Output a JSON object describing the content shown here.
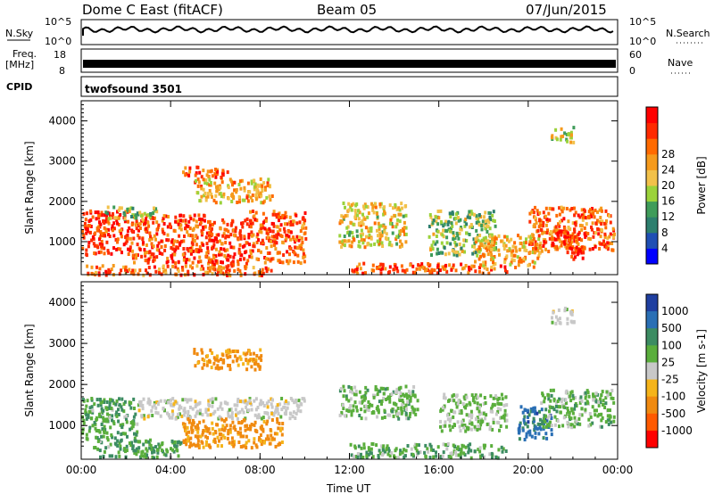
{
  "header": {
    "title": "Dome C East (fitACF)",
    "beam": "Beam 05",
    "date": "07/Jun/2015"
  },
  "strips": {
    "nsky": {
      "label": "N.Sky",
      "top": "10^5",
      "bottom": "10^0",
      "right_label": "N.Search",
      "right_top": "10^5",
      "right_bottom": "10^0"
    },
    "freq": {
      "label_top": "Freq.",
      "label_unit": "[MHz]",
      "top": "18",
      "bottom": "8",
      "right_label": "Nave",
      "right_top": "60",
      "right_bottom": "0"
    },
    "cpid": {
      "label": "CPID",
      "value": "twofsound 3501"
    }
  },
  "chart_data": [
    {
      "type": "heatmap",
      "name": "power-panel",
      "ylabel": "Slant Range [km]",
      "xlabel": "Time UT",
      "x_ticks": [
        "00:00",
        "04:00",
        "08:00",
        "12:00",
        "16:00",
        "20:00",
        "00:00"
      ],
      "x_range_hours": [
        0,
        24
      ],
      "ylim": [
        180,
        4500
      ],
      "y_ticks": [
        1000,
        2000,
        3000,
        4000
      ],
      "colorbar": {
        "label": "Power [dB]",
        "ticks": [
          "4",
          "8",
          "12",
          "16",
          "20",
          "24",
          "28"
        ],
        "colors": [
          "#0000ff",
          "#1f4fb4",
          "#2d7f6e",
          "#3f9c5a",
          "#9bd23a",
          "#f2c14a",
          "#f59a1c",
          "#ff6a00",
          "#ff2a00",
          "#ff0000"
        ]
      },
      "regions": [
        {
          "t0": 0.0,
          "t1": 2.2,
          "r0": 700,
          "r1": 1800,
          "level": 28
        },
        {
          "t0": 2.2,
          "t1": 5.5,
          "r0": 500,
          "r1": 1700,
          "level": 26
        },
        {
          "t0": 5.5,
          "t1": 7.5,
          "r0": 450,
          "r1": 1600,
          "level": 27
        },
        {
          "t0": 7.5,
          "t1": 10.0,
          "r0": 500,
          "r1": 1800,
          "level": 25
        },
        {
          "t0": 1.0,
          "t1": 3.5,
          "r0": 1600,
          "r1": 1900,
          "level": 14
        },
        {
          "t0": 4.5,
          "t1": 6.5,
          "r0": 2600,
          "r1": 2900,
          "level": 26
        },
        {
          "t0": 5.0,
          "t1": 8.5,
          "r0": 2000,
          "r1": 2600,
          "level": 20
        },
        {
          "t0": 0.2,
          "t1": 8.5,
          "r0": 200,
          "r1": 450,
          "level": 24
        },
        {
          "t0": 11.5,
          "t1": 14.5,
          "r0": 900,
          "r1": 2000,
          "level": 18
        },
        {
          "t0": 12.0,
          "t1": 19.0,
          "r0": 250,
          "r1": 500,
          "level": 26
        },
        {
          "t0": 15.5,
          "t1": 18.5,
          "r0": 700,
          "r1": 1800,
          "level": 14
        },
        {
          "t0": 17.5,
          "t1": 20.5,
          "r0": 400,
          "r1": 1200,
          "level": 20
        },
        {
          "t0": 20.0,
          "t1": 23.8,
          "r0": 800,
          "r1": 1900,
          "level": 24
        },
        {
          "t0": 21.0,
          "t1": 22.5,
          "r0": 600,
          "r1": 1300,
          "level": 28
        },
        {
          "t0": 21.0,
          "t1": 22.0,
          "r0": 3500,
          "r1": 3900,
          "level": 16
        }
      ]
    },
    {
      "type": "heatmap",
      "name": "velocity-panel",
      "ylabel": "Slant Range [km]",
      "xlabel": "Time UT",
      "x_ticks": [
        "00:00",
        "04:00",
        "08:00",
        "12:00",
        "16:00",
        "20:00",
        "00:00"
      ],
      "x_range_hours": [
        0,
        24
      ],
      "ylim": [
        180,
        4500
      ],
      "y_ticks": [
        1000,
        2000,
        3000,
        4000
      ],
      "colorbar": {
        "label": "Velocity [m s-1]",
        "ticks": [
          "1000",
          "500",
          "100",
          "25",
          "-25",
          "-100",
          "-500",
          "-1000"
        ],
        "colors": [
          "#1f3fa0",
          "#2a6fb5",
          "#3c8c62",
          "#5aae3c",
          "#c8c8c8",
          "#f5b41a",
          "#f08a10",
          "#ff5a00",
          "#ff0000"
        ]
      },
      "regions": [
        {
          "t0": 0.0,
          "t1": 2.5,
          "r0": 700,
          "r1": 1700,
          "level": 100
        },
        {
          "t0": 2.5,
          "t1": 10.0,
          "r0": 1200,
          "r1": 1700,
          "level": 0
        },
        {
          "t0": 4.5,
          "t1": 9.0,
          "r0": 500,
          "r1": 1200,
          "level": -150
        },
        {
          "t0": 5.0,
          "t1": 8.0,
          "r0": 2400,
          "r1": 2900,
          "level": -150
        },
        {
          "t0": 0.5,
          "t1": 4.5,
          "r0": 250,
          "r1": 700,
          "level": 100
        },
        {
          "t0": 11.5,
          "t1": 15.0,
          "r0": 1200,
          "r1": 2000,
          "level": 60
        },
        {
          "t0": 12.0,
          "t1": 19.0,
          "r0": 250,
          "r1": 600,
          "level": 80
        },
        {
          "t0": 16.0,
          "t1": 19.0,
          "r0": 900,
          "r1": 1800,
          "level": 40
        },
        {
          "t0": 19.5,
          "t1": 21.0,
          "r0": 700,
          "r1": 1500,
          "level": 700
        },
        {
          "t0": 20.5,
          "t1": 23.8,
          "r0": 1000,
          "r1": 1900,
          "level": 60
        },
        {
          "t0": 21.0,
          "t1": 22.0,
          "r0": 3500,
          "r1": 3900,
          "level": 0
        }
      ]
    }
  ]
}
